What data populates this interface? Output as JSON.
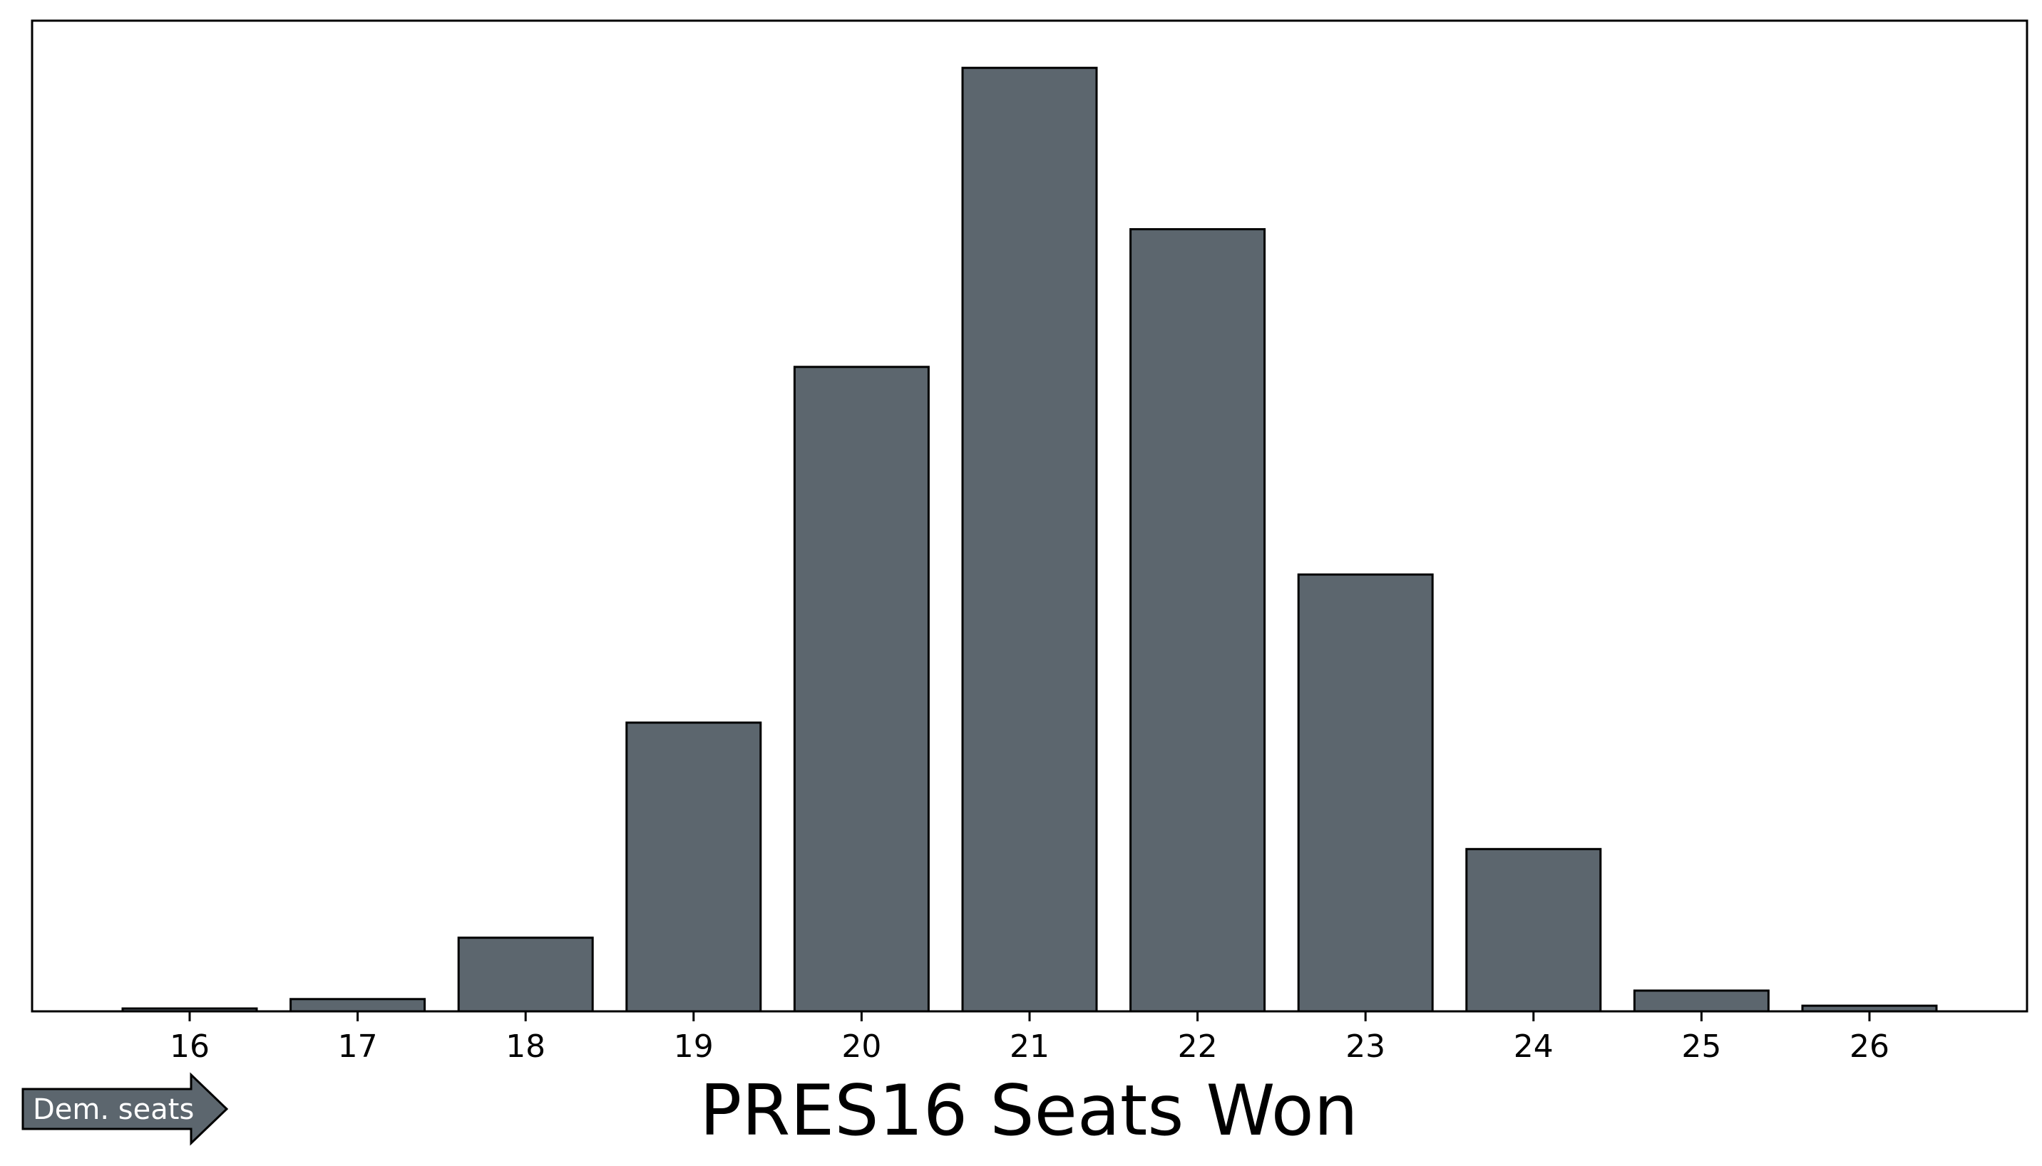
{
  "chart_data": {
    "type": "bar",
    "categories": [
      "16",
      "17",
      "18",
      "19",
      "20",
      "21",
      "22",
      "23",
      "24",
      "25",
      "26"
    ],
    "values": [
      0.3,
      1.3,
      7.8,
      30.6,
      68.3,
      100.0,
      82.9,
      46.3,
      17.2,
      2.2,
      0.6
    ],
    "xlabel": "PRES16 Seats Won",
    "ylabel": "",
    "ylim": [
      0,
      105
    ],
    "y_ticks_shown": false,
    "grid": false,
    "legend": "none",
    "colors": {
      "bar_fill": "#5c666e",
      "bar_edge": "#000000"
    }
  },
  "annotation": {
    "label": "Dem. seats",
    "icon": "right-arrow-icon",
    "fill": "#5c666e"
  }
}
